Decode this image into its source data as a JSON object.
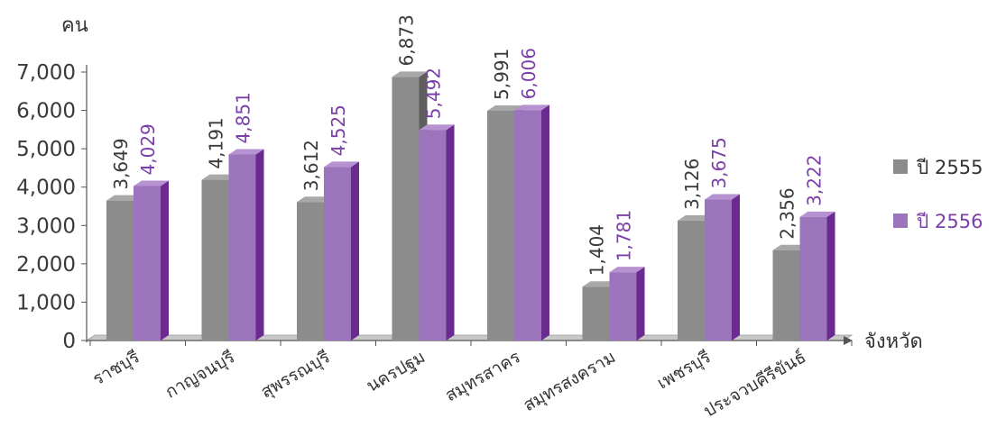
{
  "chart_data": {
    "type": "bar",
    "ylabel": "คน",
    "xlabel": "จังหวัด",
    "ylim": [
      0,
      7000
    ],
    "yticks": [
      0,
      1000,
      2000,
      3000,
      4000,
      5000,
      6000,
      7000
    ],
    "ytick_labels": [
      "0",
      "1,000",
      "2,000",
      "3,000",
      "4,000",
      "5,000",
      "6,000",
      "7,000"
    ],
    "grid": false,
    "legend_position": "right",
    "categories": [
      "ราชบุรี",
      "กาญจนบุรี",
      "สุพรรณบุรี",
      "นครปฐม",
      "สมุทรสาคร",
      "สมุทรสงคราม",
      "เพชรบุรี",
      "ประจวบคีรีขันธ์"
    ],
    "series": [
      {
        "name": "ปี 2555",
        "color": "#8a8a8a",
        "values": [
          3649,
          4191,
          3612,
          6873,
          5991,
          1404,
          3126,
          2356
        ],
        "value_labels": [
          "3,649",
          "4,191",
          "3,612",
          "6,873",
          "5,991",
          "1,404",
          "3,126",
          "2,356"
        ]
      },
      {
        "name": "ปี 2556",
        "color": "#9a73b8",
        "values": [
          4029,
          4851,
          4525,
          5492,
          6006,
          1781,
          3675,
          3222
        ],
        "value_labels": [
          "4,029",
          "4,851",
          "4,525",
          "5,492",
          "6,006",
          "1,781",
          "3,675",
          "3,222"
        ]
      }
    ]
  }
}
